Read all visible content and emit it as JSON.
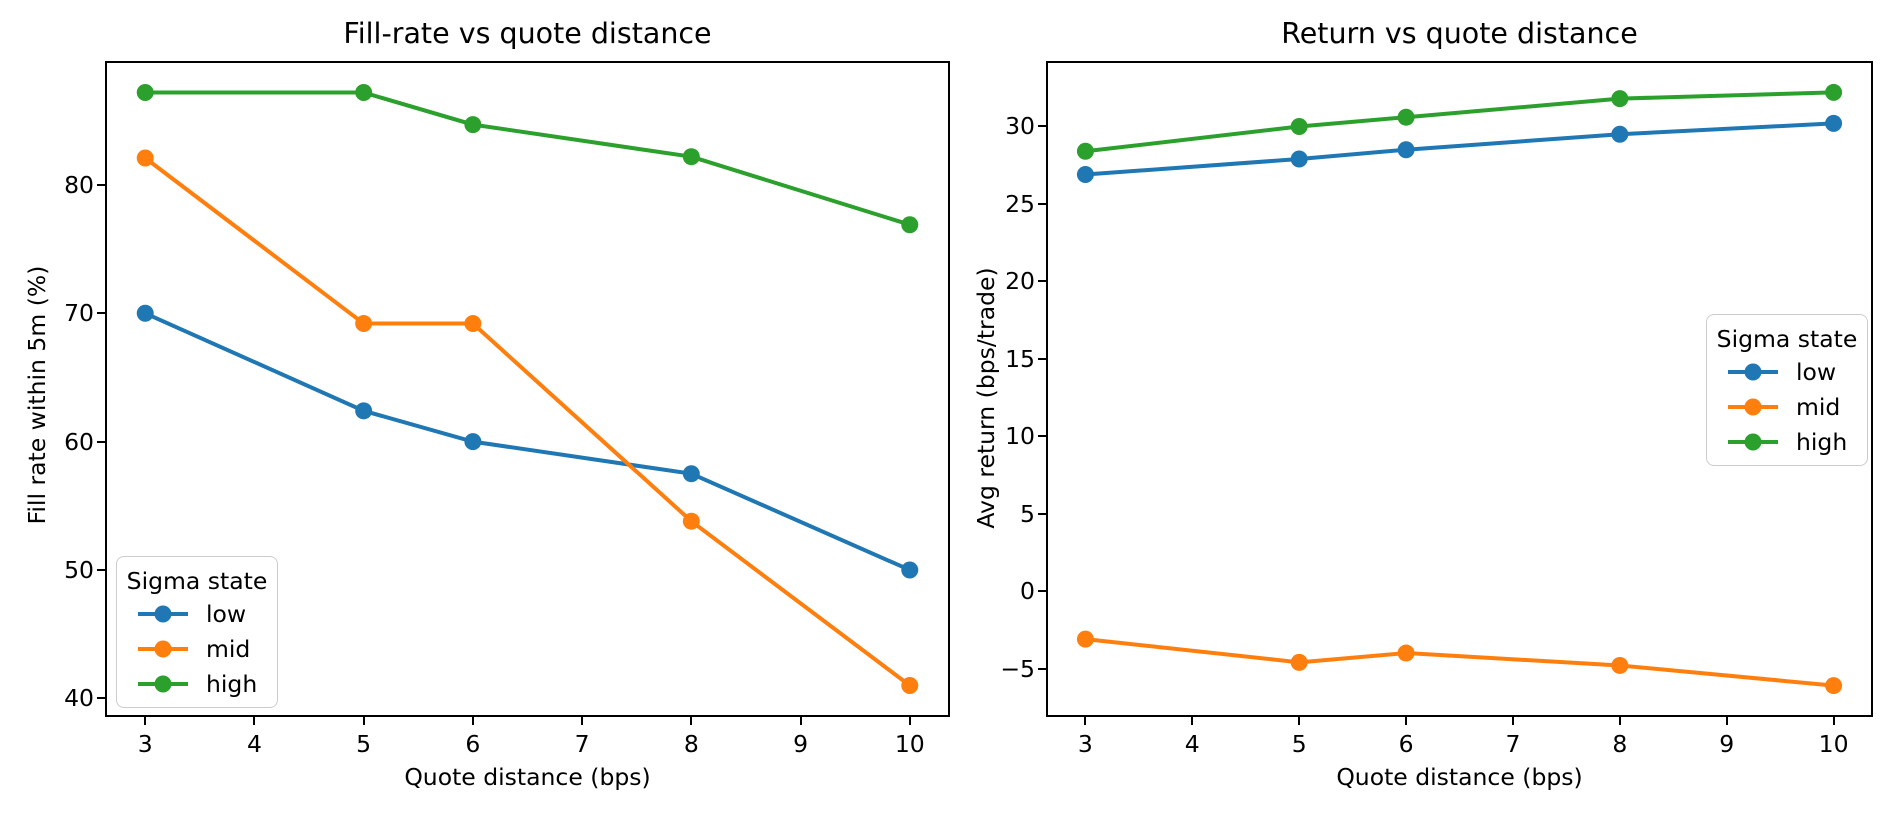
{
  "figure": {
    "type": "matplotlib-figure",
    "background": "#ffffff",
    "text_color": "#000000"
  },
  "chart_data": [
    {
      "type": "line",
      "title": "Fill-rate vs quote distance",
      "xlabel": "Quote distance (bps)",
      "ylabel": "Fill rate within 5m (%)",
      "legend": {
        "title": "Sigma state",
        "position": "lower left"
      },
      "x": [
        3,
        5,
        6,
        8,
        10
      ],
      "series": [
        {
          "name": "low",
          "color": "#1f77b4",
          "values": [
            70.0,
            62.4,
            60.0,
            57.5,
            50.0
          ]
        },
        {
          "name": "mid",
          "color": "#ff7f0e",
          "values": [
            82.1,
            69.2,
            69.2,
            53.8,
            41.0
          ]
        },
        {
          "name": "high",
          "color": "#2ca02c",
          "values": [
            87.2,
            87.2,
            84.7,
            82.2,
            76.9
          ]
        }
      ],
      "xlim": [
        2.65,
        10.35
      ],
      "ylim": [
        38.7,
        89.5
      ],
      "xticks": {
        "values": [
          3,
          4,
          5,
          6,
          7,
          8,
          9,
          10
        ],
        "labels": [
          "3",
          "4",
          "5",
          "6",
          "7",
          "8",
          "9",
          "10"
        ]
      },
      "yticks": {
        "values": [
          40,
          50,
          60,
          70,
          80
        ],
        "labels": [
          "40",
          "50",
          "60",
          "70",
          "80"
        ]
      },
      "grid": false,
      "marker": "o"
    },
    {
      "type": "line",
      "title": "Return vs quote distance",
      "xlabel": "Quote distance (bps)",
      "ylabel": "Avg return (bps/trade)",
      "legend": {
        "title": "Sigma state",
        "position": "center right"
      },
      "x": [
        3,
        5,
        6,
        8,
        10
      ],
      "series": [
        {
          "name": "low",
          "color": "#1f77b4",
          "values": [
            26.9,
            27.9,
            28.5,
            29.5,
            30.2
          ]
        },
        {
          "name": "mid",
          "color": "#ff7f0e",
          "values": [
            -3.1,
            -4.6,
            -4.0,
            -4.8,
            -6.1
          ]
        },
        {
          "name": "high",
          "color": "#2ca02c",
          "values": [
            28.4,
            30.0,
            30.6,
            31.8,
            32.2
          ]
        }
      ],
      "xlim": [
        2.65,
        10.35
      ],
      "ylim": [
        -8.0,
        34.1
      ],
      "xticks": {
        "values": [
          3,
          4,
          5,
          6,
          7,
          8,
          9,
          10
        ],
        "labels": [
          "3",
          "4",
          "5",
          "6",
          "7",
          "8",
          "9",
          "10"
        ]
      },
      "yticks": {
        "values": [
          -5,
          0,
          5,
          10,
          15,
          20,
          25,
          30
        ],
        "labels": [
          "−5",
          "0",
          "5",
          "10",
          "15",
          "20",
          "25",
          "30"
        ]
      },
      "grid": false,
      "marker": "o"
    }
  ]
}
